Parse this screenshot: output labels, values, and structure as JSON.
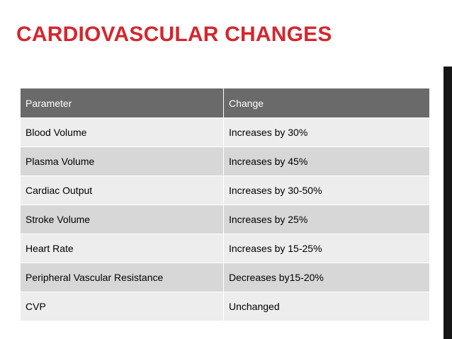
{
  "slide": {
    "title": "CARDIOVASCULAR CHANGES",
    "colors": {
      "title": "#d3272e",
      "header_bg": "#6a6a6a",
      "row_light": "#ededed",
      "row_dark": "#d7d7d7",
      "accent_bar": "#161616"
    }
  },
  "table": {
    "headers": [
      "Parameter",
      "Change"
    ],
    "rows": [
      [
        "Blood Volume",
        "Increases by 30%"
      ],
      [
        "Plasma Volume",
        "Increases by 45%"
      ],
      [
        "Cardiac Output",
        "Increases by 30-50%"
      ],
      [
        "Stroke Volume",
        "Increases by 25%"
      ],
      [
        "Heart Rate",
        "Increases by 15-25%"
      ],
      [
        "Peripheral Vascular Resistance",
        "Decreases by15-20%"
      ],
      [
        "CVP",
        "Unchanged"
      ]
    ]
  }
}
